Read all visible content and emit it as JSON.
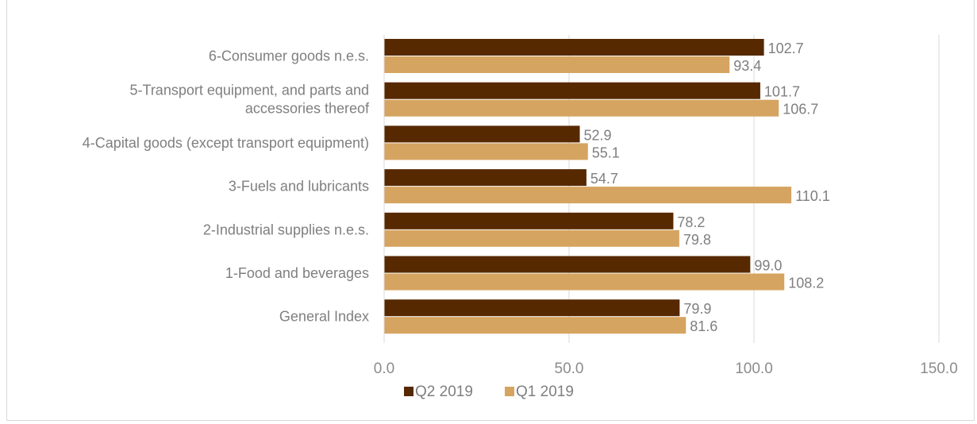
{
  "chart_data": {
    "type": "bar",
    "orientation": "horizontal",
    "title": "",
    "xlabel": "",
    "ylabel": "",
    "categories": [
      "6-Consumer goods n.e.s.",
      "5-Transport equipment, and parts and accessories thereof",
      "4-Capital goods (except transport equipment)",
      "3-Fuels and lubricants",
      "2-Industrial supplies n.e.s.",
      "1-Food and beverages",
      "General Index"
    ],
    "category_lines": [
      [
        "6-Consumer goods n.e.s."
      ],
      [
        "5-Transport equipment, and parts and",
        "accessories thereof"
      ],
      [
        "4-Capital goods (except transport equipment)"
      ],
      [
        "3-Fuels and lubricants"
      ],
      [
        "2-Industrial supplies n.e.s."
      ],
      [
        "1-Food and beverages"
      ],
      [
        "General Index"
      ]
    ],
    "series": [
      {
        "name": "Q2 2019",
        "color": "#572900",
        "values": [
          102.7,
          101.7,
          52.9,
          54.7,
          78.2,
          99.0,
          79.9
        ],
        "labels": [
          "102.7",
          "101.7",
          "52.9",
          "54.7",
          "78.2",
          "99.0",
          "79.9"
        ]
      },
      {
        "name": "Q1 2019",
        "color": "#D6A461",
        "values": [
          93.4,
          106.7,
          55.1,
          110.1,
          79.8,
          108.2,
          81.6
        ],
        "labels": [
          "93.4",
          "106.7",
          "55.1",
          "110.1",
          "79.8",
          "108.2",
          "81.6"
        ]
      }
    ],
    "xlim": [
      0,
      150
    ],
    "xticks": [
      0,
      50,
      100,
      150
    ],
    "xtick_labels": [
      "0.0",
      "50.0",
      "100.0",
      "150.0"
    ],
    "grid": true,
    "legend_position": "bottom"
  }
}
